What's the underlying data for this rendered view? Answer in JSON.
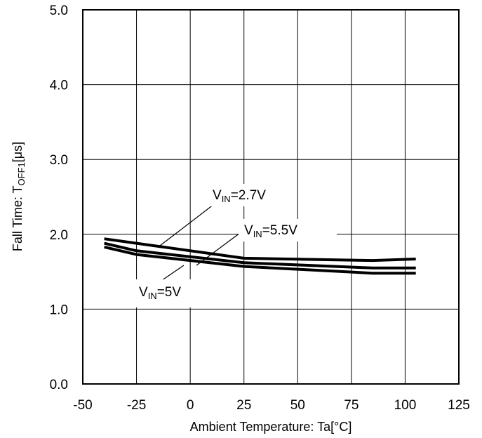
{
  "chart_data": {
    "type": "line",
    "title": "",
    "xlabel": "Ambient Temperature: Ta[°C]",
    "ylabel": {
      "prefix": "Fall Time: T",
      "subscript": "OFF1",
      "suffix": "[μs]"
    },
    "xlim": [
      -50,
      125
    ],
    "ylim": [
      0,
      5
    ],
    "xticks": [
      "-50",
      "-25",
      "0",
      "25",
      "50",
      "75",
      "100",
      "125"
    ],
    "yticks": [
      "0.0",
      "1.0",
      "2.0",
      "3.0",
      "4.0",
      "5.0"
    ],
    "grid": true,
    "x": [
      -40,
      -25,
      25,
      85,
      105
    ],
    "series": [
      {
        "name": "VIN=2.7V",
        "values": [
          1.94,
          1.88,
          1.68,
          1.65,
          1.67
        ]
      },
      {
        "name": "VIN=5.5V",
        "values": [
          1.88,
          1.78,
          1.62,
          1.55,
          1.55
        ]
      },
      {
        "name": "VIN=5V",
        "values": [
          1.83,
          1.73,
          1.57,
          1.48,
          1.48
        ]
      }
    ],
    "annotations": [
      {
        "v": "V",
        "sub": "IN",
        "rest": "=2.7V"
      },
      {
        "v": "V",
        "sub": "IN",
        "rest": "=5.5V"
      },
      {
        "v": "V",
        "sub": "IN",
        "rest": "=5V"
      }
    ],
    "line_color": "#000000"
  }
}
